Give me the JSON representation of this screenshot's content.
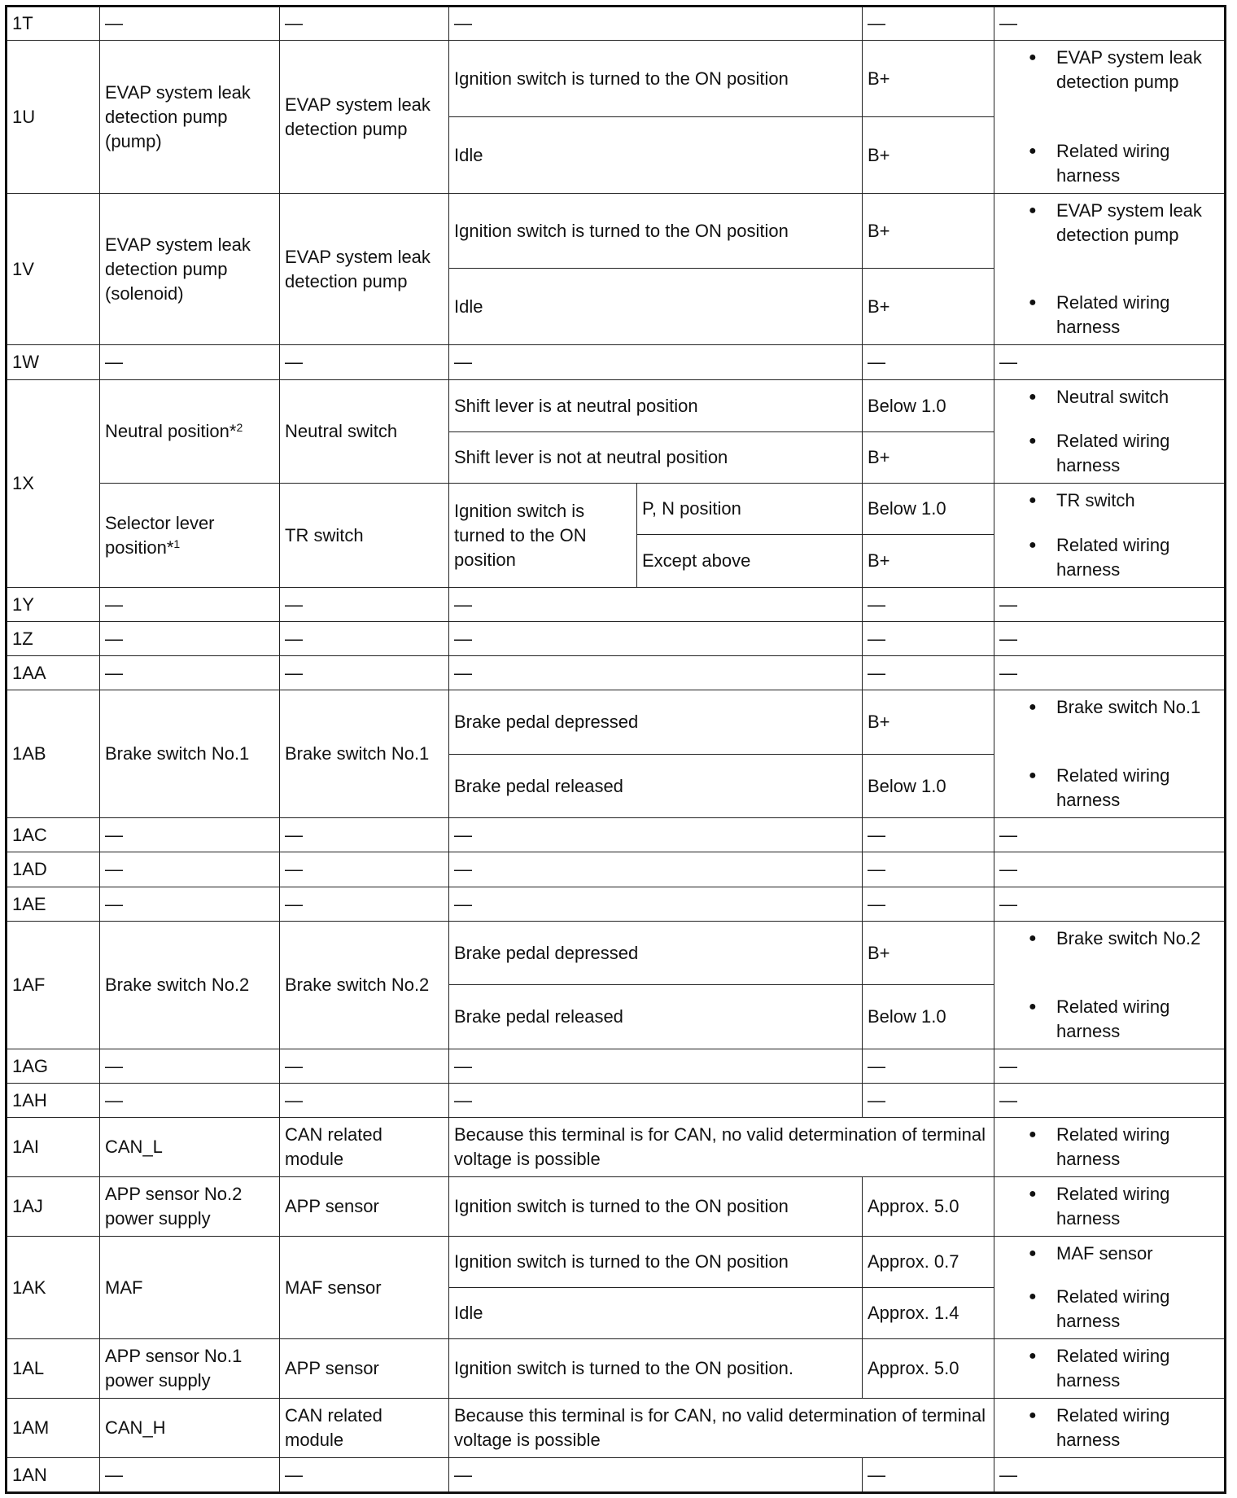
{
  "dash": "—",
  "bullet": "●",
  "terminals": [
    {
      "id": "1T",
      "dash": true
    },
    {
      "id": "1U",
      "groups": [
        {
          "description": {
            "text": "EVAP system leak detection pump (pump)"
          },
          "component": "EVAP system leak detection pump",
          "conditions": [
            {
              "condition": "Ignition switch is turned to the ON position",
              "value": "B+"
            },
            {
              "condition": "Idle",
              "value": "B+"
            }
          ],
          "checks": [
            "EVAP system leak detection pump",
            "Related wiring harness"
          ]
        }
      ]
    },
    {
      "id": "1V",
      "groups": [
        {
          "description": {
            "text": "EVAP system leak detection pump (solenoid)"
          },
          "component": "EVAP system leak detection pump",
          "conditions": [
            {
              "condition": "Ignition switch is turned to the ON position",
              "value": "B+"
            },
            {
              "condition": "Idle",
              "value": "B+"
            }
          ],
          "checks": [
            "EVAP system leak detection pump",
            "Related wiring harness"
          ]
        }
      ]
    },
    {
      "id": "1W",
      "dash": true
    },
    {
      "id": "1X",
      "groups": [
        {
          "description": {
            "text": "Neutral position*",
            "sup": "2"
          },
          "component": "Neutral switch",
          "conditions": [
            {
              "condition": "Shift lever is at neutral position",
              "value": "Below 1.0"
            },
            {
              "condition": "Shift lever is not at neutral position",
              "value": "B+"
            }
          ],
          "checks": [
            "Neutral switch",
            "Related wiring harness"
          ]
        },
        {
          "description": {
            "text": "Selector lever position*",
            "sup": "1"
          },
          "component": "TR switch",
          "conditions": [
            {
              "condition": "Ignition switch is turned to the ON position",
              "subs": [
                {
                  "sub": "P, N position",
                  "value": "Below 1.0"
                },
                {
                  "sub": "Except above",
                  "value": "B+"
                }
              ]
            }
          ],
          "checks": [
            "TR switch",
            "Related wiring harness"
          ]
        }
      ]
    },
    {
      "id": "1Y",
      "dash": true
    },
    {
      "id": "1Z",
      "dash": true
    },
    {
      "id": "1AA",
      "dash": true
    },
    {
      "id": "1AB",
      "groups": [
        {
          "description": {
            "text": "Brake switch No.1"
          },
          "component": "Brake switch No.1",
          "conditions": [
            {
              "condition": "Brake pedal depressed",
              "value": "B+"
            },
            {
              "condition": "Brake pedal released",
              "value": "Below 1.0"
            }
          ],
          "checks": [
            "Brake switch No.1",
            "Related wiring harness"
          ]
        }
      ]
    },
    {
      "id": "1AC",
      "dash": true
    },
    {
      "id": "1AD",
      "dash": true
    },
    {
      "id": "1AE",
      "dash": true
    },
    {
      "id": "1AF",
      "groups": [
        {
          "description": {
            "text": "Brake switch No.2"
          },
          "component": "Brake switch No.2",
          "conditions": [
            {
              "condition": "Brake pedal depressed",
              "value": "B+"
            },
            {
              "condition": "Brake pedal released",
              "value": "Below 1.0"
            }
          ],
          "checks": [
            "Brake switch No.2",
            "Related wiring harness"
          ]
        }
      ]
    },
    {
      "id": "1AG",
      "dash": true
    },
    {
      "id": "1AH",
      "dash": true
    },
    {
      "id": "1AI",
      "groups": [
        {
          "description": {
            "text": "CAN_L"
          },
          "component": "CAN related module",
          "note": "Because this terminal is for CAN, no valid determination of terminal voltage is possible",
          "checks": [
            "Related wiring harness"
          ]
        }
      ]
    },
    {
      "id": "1AJ",
      "groups": [
        {
          "description": {
            "text": "APP sensor No.2 power supply"
          },
          "component": "APP sensor",
          "conditions": [
            {
              "condition": "Ignition switch is turned to the ON position",
              "value": "Approx. 5.0"
            }
          ],
          "checks": [
            "Related wiring harness"
          ]
        }
      ]
    },
    {
      "id": "1AK",
      "groups": [
        {
          "description": {
            "text": "MAF"
          },
          "component": "MAF sensor",
          "conditions": [
            {
              "condition": "Ignition switch is turned to the ON position",
              "value": "Approx. 0.7"
            },
            {
              "condition": "Idle",
              "value": "Approx. 1.4"
            }
          ],
          "checks": [
            "MAF sensor",
            "Related wiring harness"
          ]
        }
      ]
    },
    {
      "id": "1AL",
      "groups": [
        {
          "description": {
            "text": "APP sensor No.1 power supply"
          },
          "component": "APP sensor",
          "conditions": [
            {
              "condition": "Ignition switch is turned to the ON position.",
              "value": "Approx. 5.0"
            }
          ],
          "checks": [
            "Related wiring harness"
          ]
        }
      ]
    },
    {
      "id": "1AM",
      "groups": [
        {
          "description": {
            "text": "CAN_H"
          },
          "component": "CAN related module",
          "note": "Because this terminal is for CAN, no valid determination of terminal voltage is possible",
          "checks": [
            "Related wiring harness"
          ]
        }
      ]
    },
    {
      "id": "1AN",
      "dash": true
    }
  ]
}
